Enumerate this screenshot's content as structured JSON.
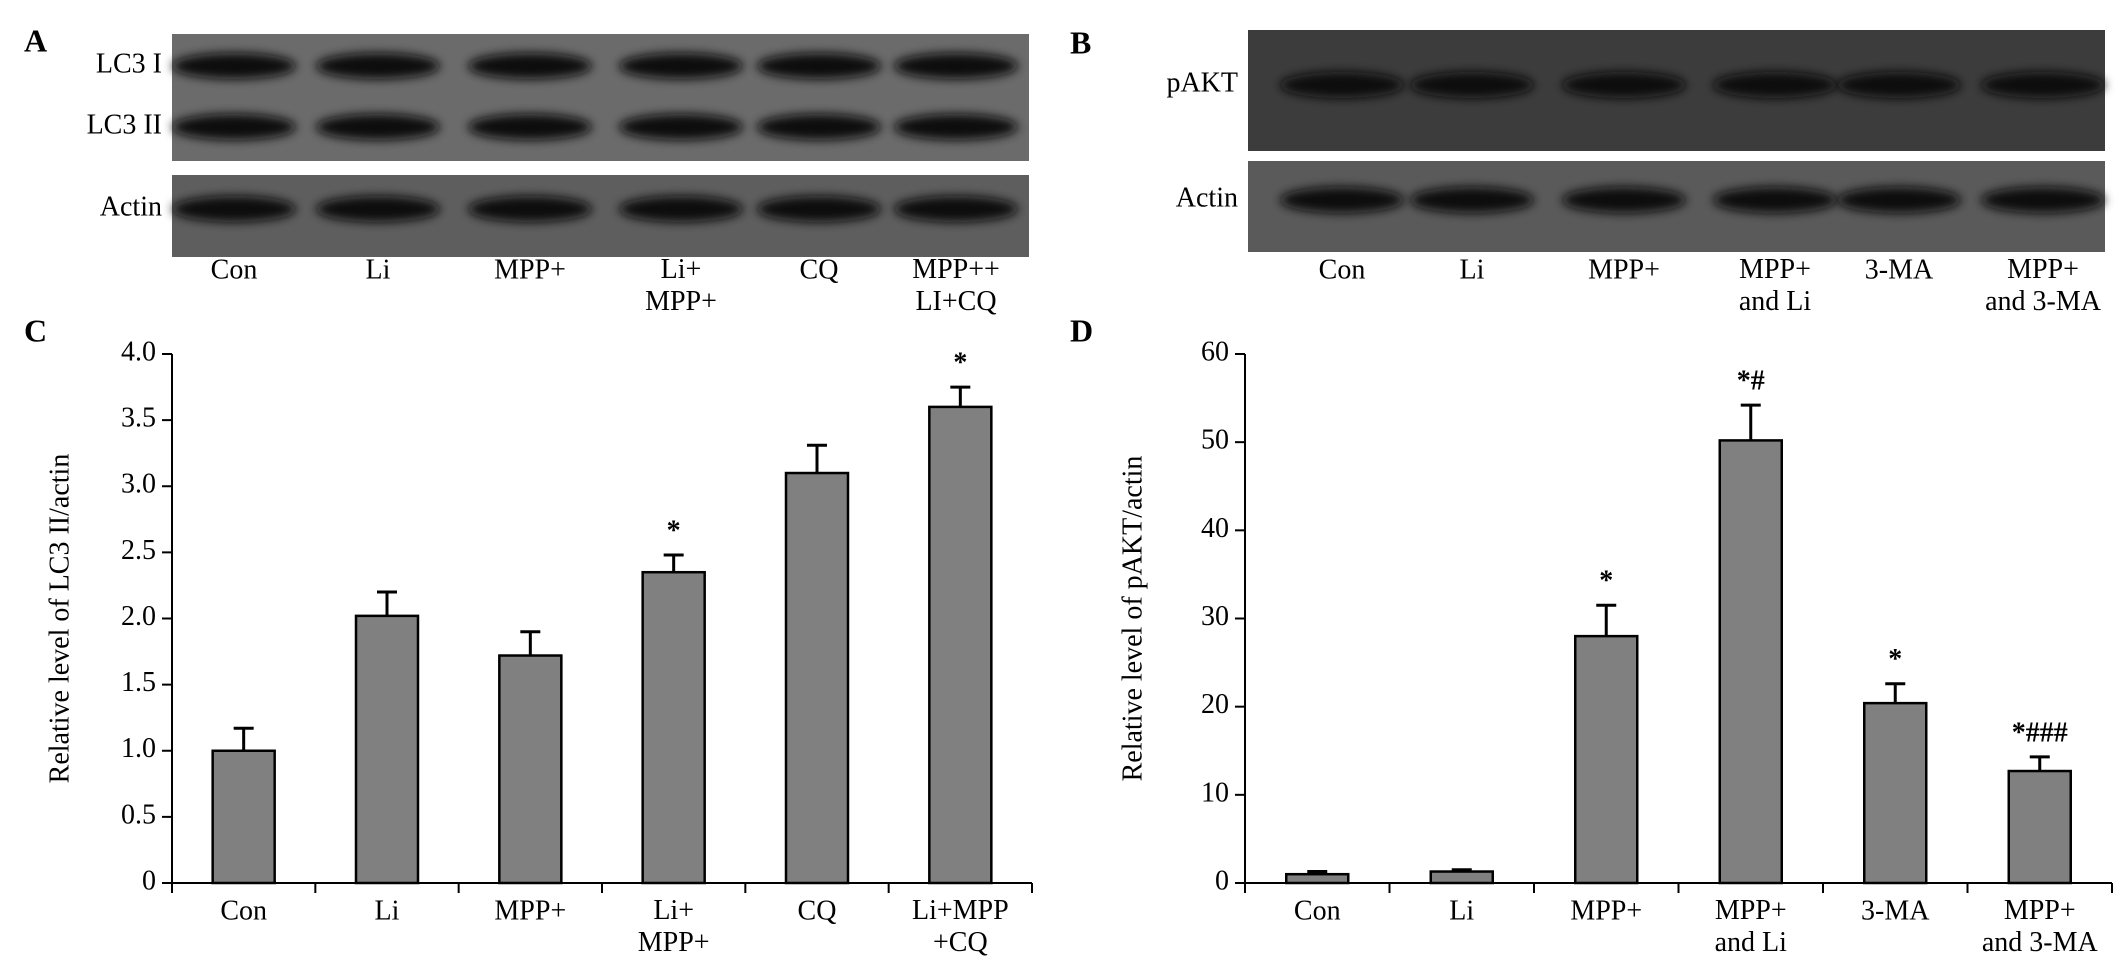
{
  "blots": [
    {
      "panel": "A",
      "row_labels": [
        "LC3 I",
        "LC3 II",
        "Actin"
      ],
      "lanes": [
        "Con",
        "Li",
        "MPP+",
        "Li+\nMPP+",
        "CQ",
        "MPP++\nLI+CQ"
      ]
    },
    {
      "panel": "B",
      "row_labels": [
        "pAKT",
        "Actin"
      ],
      "lanes": [
        "Con",
        "Li",
        "MPP+",
        "MPP+\nand Li",
        "3-MA",
        "MPP+\nand 3-MA"
      ]
    }
  ],
  "chart_data": [
    {
      "type": "bar",
      "panel": "C",
      "y_label": "Relative level of LC3 II/actin",
      "categories": [
        "Con",
        "Li",
        "MPP+",
        "Li+\nMPP+",
        "CQ",
        "Li+MPP\n+CQ"
      ],
      "values": [
        1.0,
        2.02,
        1.72,
        2.35,
        3.1,
        3.6
      ],
      "errors": [
        0.17,
        0.18,
        0.18,
        0.13,
        0.21,
        0.15
      ],
      "annotations": [
        null,
        null,
        null,
        "*",
        null,
        "*"
      ],
      "color": "#808080",
      "ylim": [
        0,
        4
      ],
      "yticks": [
        0,
        0.5,
        {
          "value": 1,
          "label": "1.0"
        },
        1.5,
        {
          "value": 2,
          "label": "2.0"
        },
        2.5,
        {
          "value": 3,
          "label": "3.0"
        },
        3.5,
        {
          "value": 4,
          "label": "4.0"
        }
      ]
    },
    {
      "type": "bar",
      "panel": "D",
      "y_label": "Relative level of pAKT/actin",
      "categories": [
        "Con",
        "Li",
        "MPP+",
        "MPP+\nand Li",
        "3-MA",
        "MPP+\nand 3-MA"
      ],
      "values": [
        1,
        1.3,
        28,
        50.2,
        20.4,
        12.7
      ],
      "errors": [
        0.3,
        0.2,
        3.5,
        4,
        2.2,
        1.6
      ],
      "annotations": [
        null,
        null,
        "*",
        "*#",
        "*",
        "*###"
      ],
      "color": "#808080",
      "ylim": [
        0,
        60
      ],
      "yticks": [
        0,
        10,
        20,
        30,
        40,
        50,
        60
      ]
    }
  ]
}
